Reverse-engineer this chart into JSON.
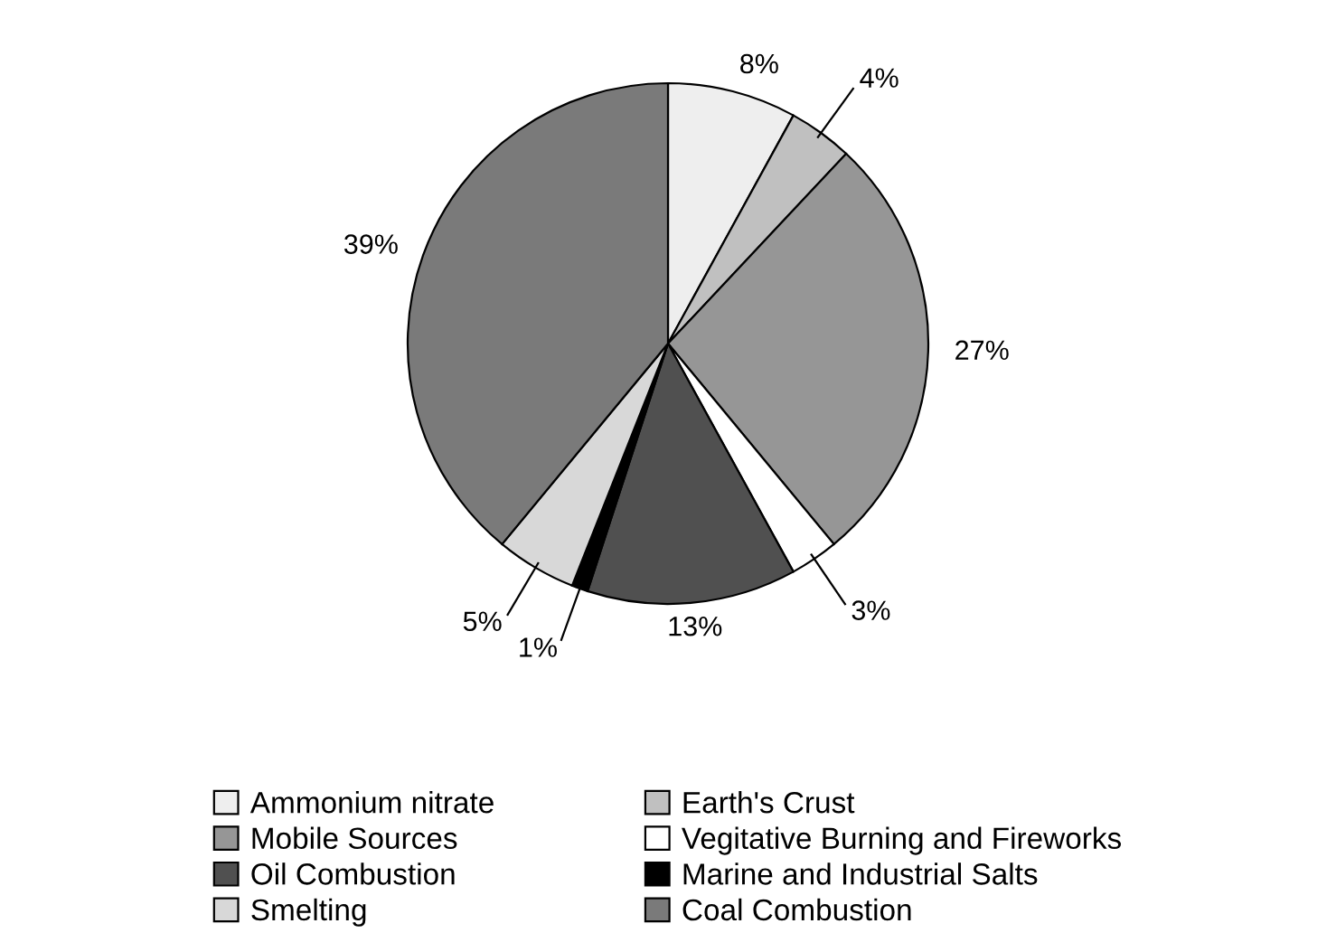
{
  "chart_data": {
    "type": "pie",
    "categories": [
      "Ammonium nitrate",
      "Earth's Crust",
      "Mobile Sources",
      "Vegitative Burning and Fireworks",
      "Oil Combustion",
      "Marine and Industrial Salts",
      "Smelting",
      "Coal Combustion"
    ],
    "values": [
      8,
      4,
      27,
      3,
      13,
      1,
      5,
      39
    ],
    "colors": [
      "#eeeeee",
      "#c0c0c0",
      "#969696",
      "#ffffff",
      "#505050",
      "#000000",
      "#d8d8d8",
      "#7a7a7a"
    ],
    "value_labels": [
      "8%",
      "4%",
      "27%",
      "3%",
      "13%",
      "1%",
      "5%",
      "39%"
    ],
    "legend": "bottom"
  }
}
